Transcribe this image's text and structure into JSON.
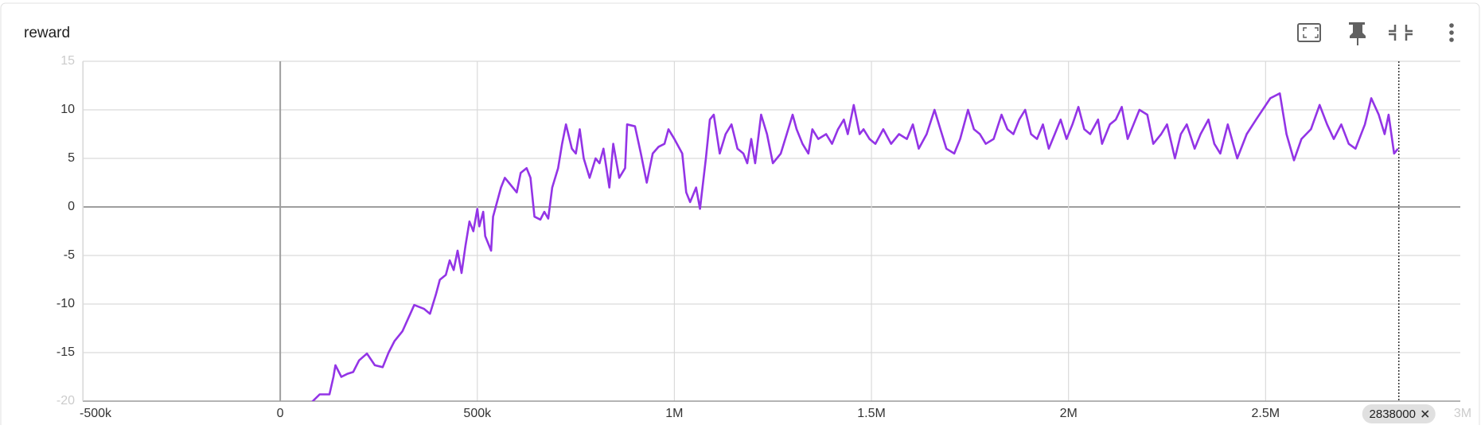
{
  "header": {
    "title": "reward"
  },
  "chart_data": {
    "type": "line",
    "x": [
      75000,
      100000,
      125000,
      135000,
      140000,
      155000,
      170000,
      185000,
      200000,
      220000,
      240000,
      260000,
      275000,
      290000,
      310000,
      330000,
      340000,
      365000,
      380000,
      395000,
      405000,
      420000,
      430000,
      440000,
      450000,
      460000,
      470000,
      480000,
      490000,
      500000,
      505000,
      515000,
      520000,
      535000,
      540000,
      560000,
      570000,
      580000,
      600000,
      610000,
      625000,
      635000,
      645000,
      660000,
      670000,
      680000,
      690000,
      705000,
      715000,
      725000,
      740000,
      750000,
      760000,
      770000,
      785000,
      800000,
      810000,
      820000,
      835000,
      845000,
      860000,
      875000,
      880000,
      900000,
      915000,
      930000,
      945000,
      960000,
      975000,
      985000,
      1000000,
      1020000,
      1030000,
      1040000,
      1055000,
      1065000,
      1080000,
      1090000,
      1100000,
      1115000,
      1130000,
      1145000,
      1160000,
      1175000,
      1185000,
      1195000,
      1205000,
      1220000,
      1235000,
      1250000,
      1270000,
      1285000,
      1300000,
      1310000,
      1325000,
      1340000,
      1350000,
      1365000,
      1385000,
      1400000,
      1415000,
      1430000,
      1440000,
      1455000,
      1470000,
      1480000,
      1495000,
      1510000,
      1530000,
      1550000,
      1570000,
      1590000,
      1605000,
      1620000,
      1640000,
      1660000,
      1675000,
      1690000,
      1710000,
      1725000,
      1745000,
      1760000,
      1775000,
      1790000,
      1810000,
      1830000,
      1845000,
      1860000,
      1875000,
      1890000,
      1905000,
      1920000,
      1935000,
      1950000,
      1965000,
      1980000,
      1995000,
      2010000,
      2025000,
      2040000,
      2055000,
      2075000,
      2085000,
      2105000,
      2120000,
      2135000,
      2150000,
      2165000,
      2180000,
      2200000,
      2215000,
      2235000,
      2250000,
      2270000,
      2285000,
      2300000,
      2320000,
      2335000,
      2355000,
      2370000,
      2385000,
      2404000,
      2428000,
      2452000,
      2476000,
      2512000,
      2536000,
      2553000,
      2572000,
      2591000,
      2615000,
      2637000,
      2656000,
      2673000,
      2692000,
      2711000,
      2728000,
      2752000,
      2768000,
      2787000,
      2802000,
      2812000,
      2826000,
      2836000
    ],
    "series": [
      {
        "name": "reward",
        "color": "#9334e6",
        "values": [
          -20.3,
          -19.3,
          -19.3,
          -17.5,
          -16.3,
          -17.5,
          -17.2,
          -17.0,
          -15.8,
          -15.1,
          -16.3,
          -16.5,
          -15.0,
          -13.8,
          -12.8,
          -11.0,
          -10.1,
          -10.5,
          -11.0,
          -9.0,
          -7.5,
          -7.0,
          -5.5,
          -6.5,
          -4.5,
          -6.8,
          -4.0,
          -1.5,
          -2.5,
          -0.2,
          -2.0,
          -0.5,
          -3.0,
          -4.5,
          -1.0,
          2.0,
          3.0,
          2.5,
          1.5,
          3.5,
          4.0,
          3.0,
          -1.0,
          -1.3,
          -0.5,
          -1.2,
          2.0,
          4.0,
          6.5,
          8.5,
          6.0,
          5.5,
          8.0,
          5.0,
          3.0,
          5.0,
          4.5,
          6.0,
          2.0,
          6.5,
          3.0,
          4.0,
          8.5,
          8.3,
          5.5,
          2.5,
          5.5,
          6.2,
          6.5,
          8.0,
          7.0,
          5.5,
          1.5,
          0.5,
          2.0,
          -0.2,
          5.0,
          9.0,
          9.5,
          5.5,
          7.5,
          8.5,
          6.0,
          5.5,
          4.5,
          7.0,
          4.5,
          9.5,
          7.5,
          4.5,
          5.5,
          7.5,
          9.5,
          8.0,
          6.5,
          5.5,
          8.0,
          7.0,
          7.5,
          6.5,
          8.0,
          9.0,
          7.5,
          10.5,
          7.5,
          8.0,
          7.0,
          6.5,
          8.0,
          6.5,
          7.5,
          7.0,
          8.5,
          6.0,
          7.5,
          10.0,
          8.0,
          6.0,
          5.5,
          7.0,
          10.0,
          8.0,
          7.5,
          6.5,
          7.0,
          9.5,
          8.0,
          7.5,
          9.0,
          10.0,
          7.5,
          7.0,
          8.5,
          6.0,
          7.5,
          9.0,
          7.0,
          8.5,
          10.3,
          8.0,
          7.5,
          9.0,
          6.5,
          8.5,
          9.0,
          10.3,
          7.0,
          8.5,
          10.0,
          9.5,
          6.5,
          7.5,
          8.5,
          5.0,
          7.5,
          8.5,
          6.0,
          7.5,
          9.0,
          6.5,
          5.5,
          8.5,
          5.0,
          7.5,
          9.0,
          11.2,
          11.7,
          7.5,
          4.8,
          7.0,
          8.0,
          10.5,
          8.5,
          7.0,
          8.5,
          6.5,
          6.0,
          8.5,
          11.2,
          9.5,
          7.5,
          9.5,
          5.5,
          6.0
        ]
      }
    ],
    "xlim": [
      -501000,
      2994000
    ],
    "ylim": [
      -20,
      15
    ],
    "xticks": [
      {
        "value": -500000,
        "label": "-500k"
      },
      0,
      {
        "value": 500000,
        "label": "500k"
      },
      {
        "value": 1000000,
        "label": "1M"
      },
      {
        "value": 1500000,
        "label": "1.5M"
      },
      {
        "value": 2000000,
        "label": "2M"
      },
      {
        "value": 2500000,
        "label": "2.5M"
      },
      {
        "value": 3000000,
        "label": "3M"
      }
    ],
    "yticks": [
      -20,
      -15,
      -10,
      -5,
      0,
      5,
      10,
      15
    ],
    "grid": true,
    "cursor_x": 2838000
  }
}
